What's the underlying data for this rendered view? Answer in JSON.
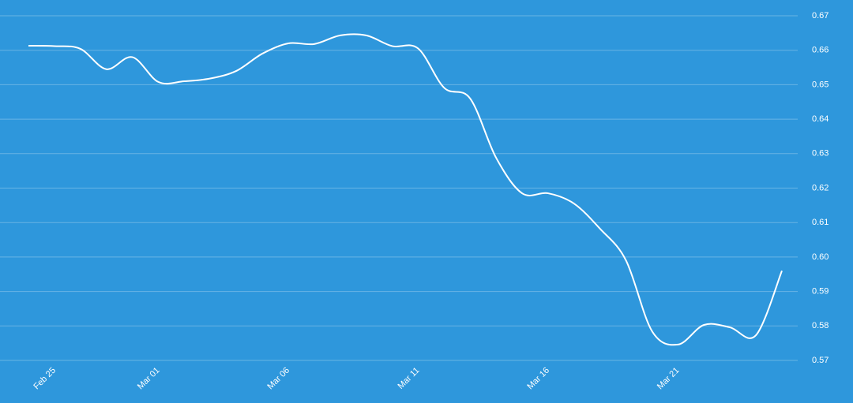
{
  "chart_data": {
    "type": "line",
    "categories": [
      null,
      "Feb 25",
      null,
      null,
      null,
      "Mar 01",
      null,
      null,
      null,
      null,
      "Mar 06",
      null,
      null,
      null,
      null,
      "Mar 11",
      null,
      null,
      null,
      null,
      "Mar 16",
      null,
      null,
      null,
      null,
      "Mar 21",
      null,
      null,
      null,
      null
    ],
    "series": [
      {
        "color": "#ffffff",
        "values": [
          0.6613,
          0.6612,
          0.6604,
          0.6545,
          0.658,
          0.6508,
          0.651,
          0.6518,
          0.654,
          0.659,
          0.662,
          0.6618,
          0.6643,
          0.6643,
          0.6612,
          0.6605,
          0.6491,
          0.646,
          0.6288,
          0.6185,
          0.6185,
          0.6155,
          0.6082,
          0.599,
          0.5785,
          0.5746,
          0.5803,
          0.5796,
          0.5773,
          0.596
        ]
      }
    ],
    "ylim": [
      0.57,
      0.67
    ],
    "yticks": [
      {
        "value": 0.57,
        "label": "0.57"
      },
      {
        "value": 0.58,
        "label": "0.58"
      },
      {
        "value": 0.59,
        "label": "0.59"
      },
      {
        "value": 0.6,
        "label": "0.60"
      },
      {
        "value": 0.61,
        "label": "0.61"
      },
      {
        "value": 0.62,
        "label": "0.62"
      },
      {
        "value": 0.63,
        "label": "0.63"
      },
      {
        "value": 0.64,
        "label": "0.64"
      },
      {
        "value": 0.65,
        "label": "0.65"
      },
      {
        "value": 0.66,
        "label": "0.66"
      },
      {
        "value": 0.67,
        "label": "0.67"
      }
    ],
    "grid": true
  }
}
